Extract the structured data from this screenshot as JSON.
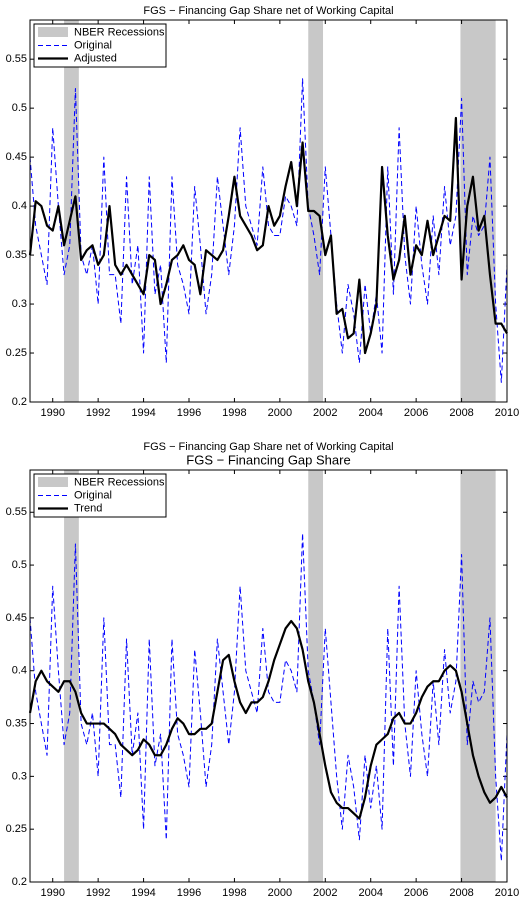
{
  "chart_data": [
    {
      "type": "line",
      "title": "FGS − Financing Gap Share net of Working Capital",
      "recession_label": "NBER Recessions",
      "recessions": [
        [
          1990.5,
          1991.15
        ],
        [
          2001.25,
          2001.9
        ],
        [
          2007.95,
          2009.5
        ]
      ],
      "recession_color": "#c8c8c8",
      "xlim": [
        1989,
        2010
      ],
      "xticks": [
        1990,
        1992,
        1994,
        1996,
        1998,
        2000,
        2002,
        2004,
        2006,
        2008,
        2010
      ],
      "ylim": [
        0.2,
        0.59
      ],
      "yticks": [
        0.2,
        0.25,
        0.3,
        0.35,
        0.4,
        0.45,
        0.5,
        0.55
      ],
      "legend": "upper left",
      "x": [
        1989,
        1989.25,
        1989.5,
        1989.75,
        1990,
        1990.25,
        1990.5,
        1990.75,
        1991,
        1991.25,
        1991.5,
        1991.75,
        1992,
        1992.25,
        1992.5,
        1992.75,
        1993,
        1993.25,
        1993.5,
        1993.75,
        1994,
        1994.25,
        1994.5,
        1994.75,
        1995,
        1995.25,
        1995.5,
        1995.75,
        1996,
        1996.25,
        1996.5,
        1996.75,
        1997,
        1997.25,
        1997.5,
        1997.75,
        1998,
        1998.25,
        1998.5,
        1998.75,
        1999,
        1999.25,
        1999.5,
        1999.75,
        2000,
        2000.25,
        2000.5,
        2000.75,
        2001,
        2001.25,
        2001.5,
        2001.75,
        2002,
        2002.25,
        2002.5,
        2002.75,
        2003,
        2003.25,
        2003.5,
        2003.75,
        2004,
        2004.25,
        2004.5,
        2004.75,
        2005,
        2005.25,
        2005.5,
        2005.75,
        2006,
        2006.25,
        2006.5,
        2006.75,
        2007,
        2007.25,
        2007.5,
        2007.75,
        2008,
        2008.25,
        2008.5,
        2008.75,
        2009,
        2009.25,
        2009.5,
        2009.75,
        2010
      ],
      "series": [
        {
          "name": "Original",
          "color": "#0000ff",
          "dash": true,
          "values": [
            0.45,
            0.38,
            0.35,
            0.32,
            0.48,
            0.4,
            0.33,
            0.36,
            0.52,
            0.35,
            0.33,
            0.36,
            0.3,
            0.45,
            0.33,
            0.33,
            0.28,
            0.43,
            0.32,
            0.36,
            0.25,
            0.43,
            0.31,
            0.34,
            0.24,
            0.43,
            0.34,
            0.32,
            0.29,
            0.42,
            0.36,
            0.29,
            0.33,
            0.43,
            0.38,
            0.33,
            0.38,
            0.48,
            0.4,
            0.38,
            0.36,
            0.44,
            0.38,
            0.37,
            0.37,
            0.41,
            0.4,
            0.38,
            0.53,
            0.4,
            0.37,
            0.33,
            0.44,
            0.37,
            0.3,
            0.25,
            0.32,
            0.29,
            0.24,
            0.32,
            0.27,
            0.31,
            0.25,
            0.44,
            0.31,
            0.48,
            0.35,
            0.3,
            0.4,
            0.34,
            0.3,
            0.39,
            0.33,
            0.42,
            0.36,
            0.39,
            0.51,
            0.33,
            0.39,
            0.37,
            0.38,
            0.45,
            0.3,
            0.22,
            0.34
          ]
        },
        {
          "name": "Adjusted",
          "color": "#000000",
          "dash": false,
          "values": [
            0.35,
            0.405,
            0.4,
            0.38,
            0.375,
            0.4,
            0.36,
            0.385,
            0.41,
            0.345,
            0.355,
            0.36,
            0.34,
            0.35,
            0.4,
            0.34,
            0.33,
            0.34,
            0.33,
            0.32,
            0.31,
            0.35,
            0.345,
            0.3,
            0.32,
            0.345,
            0.35,
            0.36,
            0.345,
            0.34,
            0.31,
            0.355,
            0.35,
            0.345,
            0.355,
            0.39,
            0.43,
            0.39,
            0.38,
            0.37,
            0.355,
            0.36,
            0.4,
            0.38,
            0.39,
            0.42,
            0.445,
            0.4,
            0.465,
            0.395,
            0.395,
            0.39,
            0.35,
            0.37,
            0.29,
            0.295,
            0.265,
            0.27,
            0.325,
            0.25,
            0.27,
            0.3,
            0.44,
            0.37,
            0.325,
            0.345,
            0.39,
            0.33,
            0.36,
            0.35,
            0.385,
            0.35,
            0.37,
            0.39,
            0.385,
            0.49,
            0.325,
            0.4,
            0.43,
            0.375,
            0.39,
            0.33,
            0.28,
            0.28,
            0.27
          ]
        }
      ]
    },
    {
      "type": "line",
      "subtitle": "FGS − Financing Gap Share net of Working Capital",
      "title": "FGS − Financing Gap Share",
      "recession_label": "NBER Recessions",
      "recessions": [
        [
          1990.5,
          1991.15
        ],
        [
          2001.25,
          2001.9
        ],
        [
          2007.95,
          2009.5
        ]
      ],
      "recession_color": "#c8c8c8",
      "xlim": [
        1989,
        2010
      ],
      "xticks": [
        1990,
        1992,
        1994,
        1996,
        1998,
        2000,
        2002,
        2004,
        2006,
        2008,
        2010
      ],
      "ylim": [
        0.2,
        0.59
      ],
      "yticks": [
        0.2,
        0.25,
        0.3,
        0.35,
        0.4,
        0.45,
        0.5,
        0.55
      ],
      "legend": "upper left",
      "x": [
        1989,
        1989.25,
        1989.5,
        1989.75,
        1990,
        1990.25,
        1990.5,
        1990.75,
        1991,
        1991.25,
        1991.5,
        1991.75,
        1992,
        1992.25,
        1992.5,
        1992.75,
        1993,
        1993.25,
        1993.5,
        1993.75,
        1994,
        1994.25,
        1994.5,
        1994.75,
        1995,
        1995.25,
        1995.5,
        1995.75,
        1996,
        1996.25,
        1996.5,
        1996.75,
        1997,
        1997.25,
        1997.5,
        1997.75,
        1998,
        1998.25,
        1998.5,
        1998.75,
        1999,
        1999.25,
        1999.5,
        1999.75,
        2000,
        2000.25,
        2000.5,
        2000.75,
        2001,
        2001.25,
        2001.5,
        2001.75,
        2002,
        2002.25,
        2002.5,
        2002.75,
        2003,
        2003.25,
        2003.5,
        2003.75,
        2004,
        2004.25,
        2004.5,
        2004.75,
        2005,
        2005.25,
        2005.5,
        2005.75,
        2006,
        2006.25,
        2006.5,
        2006.75,
        2007,
        2007.25,
        2007.5,
        2007.75,
        2008,
        2008.25,
        2008.5,
        2008.75,
        2009,
        2009.25,
        2009.5,
        2009.75,
        2010
      ],
      "series": [
        {
          "name": "Original",
          "color": "#0000ff",
          "dash": true,
          "values": [
            0.45,
            0.38,
            0.35,
            0.32,
            0.48,
            0.4,
            0.33,
            0.36,
            0.52,
            0.35,
            0.33,
            0.36,
            0.3,
            0.45,
            0.33,
            0.33,
            0.28,
            0.43,
            0.32,
            0.36,
            0.25,
            0.43,
            0.31,
            0.34,
            0.24,
            0.43,
            0.34,
            0.32,
            0.29,
            0.42,
            0.36,
            0.29,
            0.33,
            0.43,
            0.38,
            0.33,
            0.38,
            0.48,
            0.4,
            0.38,
            0.36,
            0.44,
            0.38,
            0.37,
            0.37,
            0.41,
            0.4,
            0.38,
            0.53,
            0.4,
            0.37,
            0.33,
            0.44,
            0.37,
            0.3,
            0.25,
            0.32,
            0.29,
            0.24,
            0.32,
            0.27,
            0.31,
            0.25,
            0.44,
            0.31,
            0.48,
            0.35,
            0.3,
            0.4,
            0.34,
            0.3,
            0.39,
            0.33,
            0.42,
            0.36,
            0.39,
            0.51,
            0.33,
            0.39,
            0.37,
            0.38,
            0.45,
            0.3,
            0.22,
            0.34
          ]
        },
        {
          "name": "Trend",
          "color": "#000000",
          "dash": false,
          "values": [
            0.36,
            0.39,
            0.4,
            0.39,
            0.385,
            0.38,
            0.39,
            0.39,
            0.38,
            0.36,
            0.35,
            0.35,
            0.35,
            0.35,
            0.345,
            0.34,
            0.33,
            0.325,
            0.32,
            0.325,
            0.335,
            0.33,
            0.32,
            0.32,
            0.33,
            0.345,
            0.355,
            0.35,
            0.34,
            0.34,
            0.345,
            0.345,
            0.35,
            0.38,
            0.41,
            0.415,
            0.39,
            0.37,
            0.36,
            0.37,
            0.37,
            0.375,
            0.39,
            0.41,
            0.425,
            0.44,
            0.447,
            0.44,
            0.42,
            0.39,
            0.37,
            0.34,
            0.31,
            0.285,
            0.275,
            0.27,
            0.27,
            0.265,
            0.26,
            0.28,
            0.31,
            0.33,
            0.335,
            0.34,
            0.355,
            0.36,
            0.35,
            0.35,
            0.36,
            0.375,
            0.385,
            0.39,
            0.39,
            0.4,
            0.405,
            0.4,
            0.38,
            0.35,
            0.32,
            0.3,
            0.285,
            0.275,
            0.28,
            0.29,
            0.28
          ]
        }
      ]
    }
  ]
}
